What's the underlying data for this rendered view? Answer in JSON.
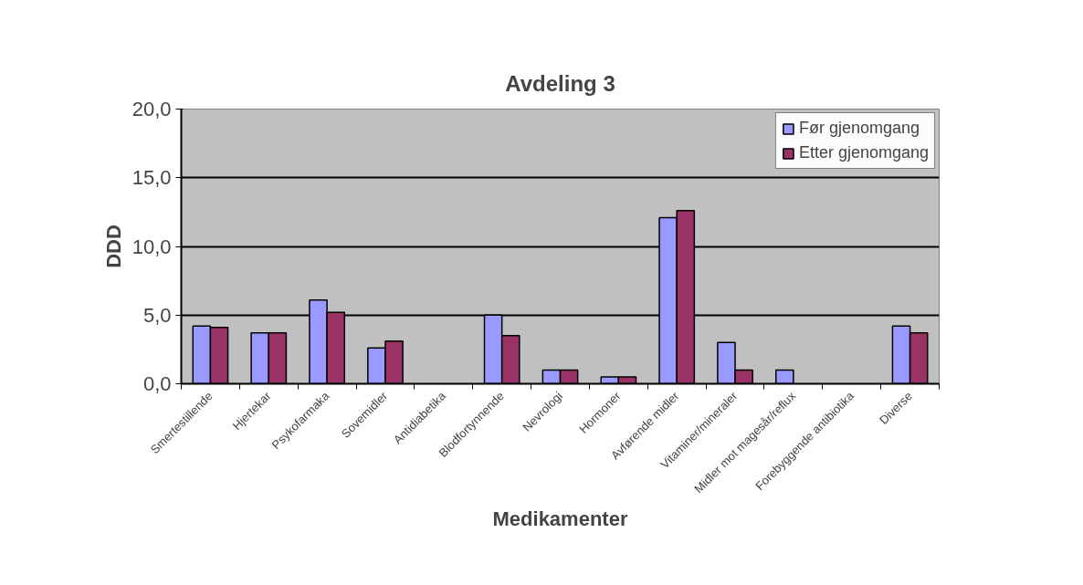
{
  "chart_data": {
    "type": "bar",
    "title": "Avdeling 3",
    "xlabel": "Medikamenter",
    "ylabel": "DDD",
    "categories": [
      "Smertestillende",
      "Hjertekar",
      "Psykofarmaka",
      "Sovemidler",
      "Antidiabetika",
      "Blodfortynnende",
      "Nevrologi",
      "Hormoner",
      "Avførende midler",
      "Vitaminer/mineraler",
      "Midler mot magesår/reflux",
      "Forebyggende antibiotika",
      "Diverse"
    ],
    "series": [
      {
        "name": "Før gjenomgang",
        "color": "#9999ff",
        "values": [
          4.2,
          3.7,
          6.1,
          2.6,
          0,
          5.0,
          1.0,
          0.5,
          12.1,
          3.0,
          1.0,
          0,
          4.2
        ]
      },
      {
        "name": "Etter gjenomgang",
        "color": "#993366",
        "values": [
          4.1,
          3.7,
          5.2,
          3.1,
          0,
          3.5,
          1.0,
          0.5,
          12.6,
          1.0,
          0,
          0,
          3.7
        ]
      }
    ],
    "ylim": [
      0,
      20
    ],
    "yticks": [
      {
        "value": 0,
        "label": "0,0"
      },
      {
        "value": 5,
        "label": "5,0"
      },
      {
        "value": 10,
        "label": "10,0"
      },
      {
        "value": 15,
        "label": "15,0"
      },
      {
        "value": 20,
        "label": "20,0"
      }
    ],
    "grid": "y",
    "legend": "top right"
  }
}
